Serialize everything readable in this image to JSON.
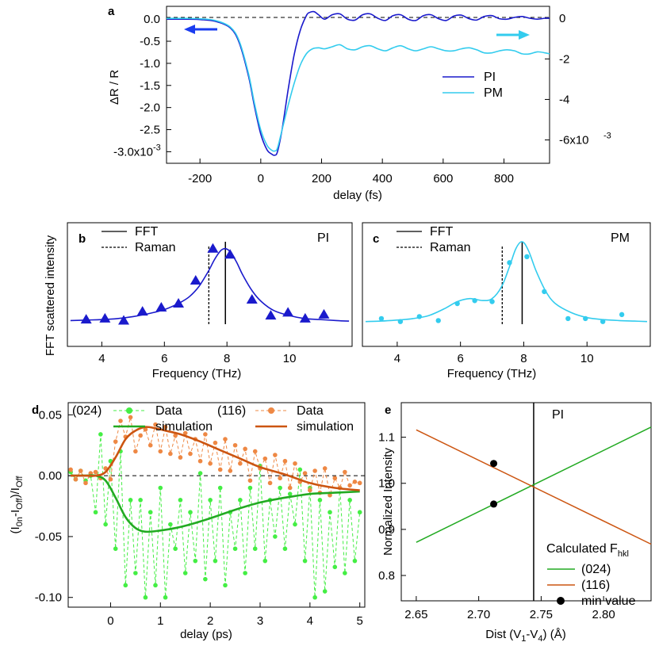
{
  "chart_data": [
    {
      "panel": "a",
      "type": "line",
      "xlabel": "delay (fs)",
      "ylabel": "ΔR / R",
      "xlim": [
        -310,
        950
      ],
      "ylim_left": [
        -3.1,
        0.2
      ],
      "ylim_right": [
        -6.8,
        0.4
      ],
      "xticks": [
        "-200",
        "0",
        "200",
        "400",
        "600",
        "800"
      ],
      "yticks_left": [
        "0.0",
        "-0.5",
        "-1.0",
        "-1.5",
        "-2.0",
        "-2.5",
        "-3.0x10"
      ],
      "yticks_left_exp": "-3",
      "yticks_right": [
        "0",
        "-2",
        "-4",
        "-6x10"
      ],
      "yticks_right_exp": "-3",
      "left_arrow_color": "#1a3cf0",
      "right_arrow_color": "#33ccee",
      "series": [
        {
          "name": "PI",
          "color": "#1a1acc",
          "axis": "left",
          "x": [
            -310,
            -250,
            -200,
            -150,
            -100,
            -70,
            -40,
            -20,
            0,
            20,
            35,
            45,
            55,
            70,
            90,
            110,
            130,
            150,
            160,
            175,
            190,
            210,
            235,
            260,
            285,
            310,
            335,
            360,
            385,
            410,
            435,
            460,
            485,
            510,
            535,
            560,
            585,
            610,
            635,
            660,
            685,
            710,
            735,
            760,
            785,
            810,
            835,
            860,
            885,
            910,
            935,
            950
          ],
          "y": [
            0.0,
            0.0,
            -0.01,
            -0.05,
            -0.2,
            -0.55,
            -1.3,
            -2.0,
            -2.6,
            -2.95,
            -3.05,
            -3.08,
            -3.0,
            -2.5,
            -1.6,
            -0.8,
            -0.25,
            0.08,
            0.15,
            0.17,
            0.1,
            0.0,
            0.1,
            0.12,
            0.0,
            -0.02,
            0.1,
            0.12,
            0.02,
            -0.03,
            0.08,
            0.1,
            0.0,
            -0.03,
            0.08,
            0.1,
            0.01,
            -0.03,
            0.07,
            0.09,
            0.01,
            -0.02,
            0.06,
            0.08,
            0.01,
            0.0,
            0.04,
            0.06,
            0.02,
            0.0,
            0.02,
            0.02
          ]
        },
        {
          "name": "PM",
          "color": "#33ccee",
          "axis": "right",
          "x": [
            -310,
            -250,
            -200,
            -150,
            -100,
            -70,
            -40,
            -20,
            0,
            20,
            35,
            45,
            55,
            70,
            90,
            110,
            130,
            150,
            170,
            190,
            210,
            235,
            260,
            285,
            310,
            335,
            360,
            385,
            410,
            435,
            460,
            485,
            510,
            535,
            560,
            585,
            610,
            635,
            660,
            685,
            710,
            735,
            760,
            785,
            810,
            835,
            860,
            885,
            910,
            935,
            950
          ],
          "y": [
            0.0,
            0.0,
            -0.02,
            -0.1,
            -0.43,
            -1.15,
            -2.75,
            -4.25,
            -5.5,
            -6.25,
            -6.5,
            -6.55,
            -6.4,
            -5.5,
            -4.3,
            -3.2,
            -2.3,
            -1.75,
            -1.5,
            -1.45,
            -1.5,
            -1.4,
            -1.3,
            -1.5,
            -1.55,
            -1.4,
            -1.35,
            -1.5,
            -1.6,
            -1.45,
            -1.35,
            -1.5,
            -1.6,
            -1.5,
            -1.4,
            -1.5,
            -1.6,
            -1.6,
            -1.5,
            -1.45,
            -1.55,
            -1.7,
            -1.7,
            -1.6,
            -1.55,
            -1.6,
            -1.75,
            -1.75,
            -1.65,
            -1.7,
            -1.75
          ]
        }
      ]
    },
    {
      "panel": "b",
      "type": "scatter",
      "annotation": "PI",
      "xlabel": "Frequency (THz)",
      "ylabel": "FFT scattered intensity",
      "xlim": [
        2.9,
        12.0
      ],
      "ylim": [
        0,
        1
      ],
      "xticks": [
        "4",
        "6",
        "8",
        "10"
      ],
      "color": "#1a1acc",
      "legend": [
        "FFT",
        "Raman"
      ],
      "fft_line_x": 7.95,
      "raman_line_x": 7.42,
      "points": {
        "x": [
          3.5,
          4.1,
          4.7,
          5.3,
          5.9,
          6.45,
          7.0,
          7.55,
          8.1,
          8.8,
          9.4,
          9.95,
          10.5,
          11.1
        ],
        "y": [
          0.07,
          0.08,
          0.06,
          0.15,
          0.19,
          0.23,
          0.46,
          0.78,
          0.72,
          0.27,
          0.11,
          0.14,
          0.08,
          0.12
        ]
      },
      "fit": {
        "x": [
          3.0,
          3.5,
          4.0,
          4.5,
          5.0,
          5.5,
          6.0,
          6.5,
          6.8,
          7.1,
          7.4,
          7.6,
          7.8,
          7.95,
          8.1,
          8.3,
          8.5,
          8.8,
          9.1,
          9.5,
          10.0,
          10.5,
          11.0,
          11.5,
          11.9
        ],
        "y": [
          0.06,
          0.065,
          0.07,
          0.08,
          0.1,
          0.13,
          0.17,
          0.24,
          0.3,
          0.4,
          0.55,
          0.67,
          0.76,
          0.78,
          0.75,
          0.65,
          0.52,
          0.36,
          0.25,
          0.16,
          0.11,
          0.08,
          0.07,
          0.06,
          0.055
        ]
      }
    },
    {
      "panel": "c",
      "type": "scatter",
      "annotation": "PM",
      "xlabel": "Frequency (THz)",
      "xlim": [
        2.9,
        12.0
      ],
      "ylim": [
        0,
        1
      ],
      "xticks": [
        "4",
        "6",
        "8",
        "10"
      ],
      "color": "#33ccee",
      "legend": [
        "FFT",
        "Raman"
      ],
      "fft_line_x": 7.95,
      "raman_line_x": 7.32,
      "points": {
        "x": [
          3.5,
          4.1,
          4.7,
          5.3,
          5.9,
          6.45,
          7.0,
          7.55,
          8.1,
          8.65,
          9.4,
          9.95,
          10.5,
          11.1
        ],
        "y": [
          0.08,
          0.05,
          0.1,
          0.06,
          0.23,
          0.26,
          0.25,
          0.64,
          0.7,
          0.35,
          0.08,
          0.08,
          0.05,
          0.12
        ]
      },
      "fit": {
        "x": [
          3.0,
          3.5,
          4.0,
          4.5,
          5.0,
          5.5,
          5.9,
          6.3,
          6.7,
          7.0,
          7.3,
          7.55,
          7.75,
          7.95,
          8.15,
          8.4,
          8.7,
          9.0,
          9.5,
          10.0,
          10.5,
          11.0,
          11.5,
          11.9
        ],
        "y": [
          0.05,
          0.055,
          0.065,
          0.08,
          0.11,
          0.18,
          0.25,
          0.28,
          0.26,
          0.28,
          0.4,
          0.6,
          0.78,
          0.85,
          0.76,
          0.55,
          0.35,
          0.23,
          0.14,
          0.09,
          0.07,
          0.06,
          0.055,
          0.05
        ]
      }
    },
    {
      "panel": "d",
      "type": "line",
      "xlabel": "delay (ps)",
      "ylabel": "(I0n-IOff)/IOff",
      "xlim": [
        -0.85,
        5.1
      ],
      "ylim": [
        -0.108,
        0.06
      ],
      "xticks": [
        "0",
        "1",
        "2",
        "3",
        "4",
        "5"
      ],
      "yticks": [
        "0.05",
        "0.00",
        "-0.05",
        "-0.10"
      ],
      "legend": [
        {
          "label": "(024)",
          "color": "#44ee44"
        },
        {
          "label": "Data",
          "color": "#44ee44"
        },
        {
          "label": "simulation",
          "color": "#22aa22"
        },
        {
          "label": "(116)",
          "color": "#ee8844"
        },
        {
          "label": "Data",
          "color": "#ee8844"
        },
        {
          "label": "simulation",
          "color": "#cc5511"
        }
      ],
      "series": [
        {
          "name": "simulation (024)",
          "color": "#22aa22",
          "x": [
            -0.8,
            -0.5,
            -0.3,
            -0.1,
            0.1,
            0.3,
            0.5,
            0.7,
            1.0,
            1.3,
            1.6,
            2.0,
            2.5,
            3.0,
            3.5,
            4.0,
            4.5,
            5.0
          ],
          "y": [
            0.0,
            0.0,
            0.0,
            -0.004,
            -0.018,
            -0.034,
            -0.043,
            -0.046,
            -0.045,
            -0.043,
            -0.04,
            -0.035,
            -0.028,
            -0.022,
            -0.018,
            -0.015,
            -0.014,
            -0.013
          ]
        },
        {
          "name": "simulation (116)",
          "color": "#cc5511",
          "x": [
            -0.8,
            -0.5,
            -0.3,
            -0.1,
            0.1,
            0.3,
            0.5,
            0.7,
            0.9,
            1.1,
            1.4,
            1.8,
            2.2,
            2.6,
            3.0,
            3.5,
            4.0,
            4.5,
            5.0
          ],
          "y": [
            0.0,
            0.0,
            0.0,
            0.003,
            0.015,
            0.03,
            0.037,
            0.04,
            0.039,
            0.037,
            0.034,
            0.028,
            0.021,
            0.014,
            0.007,
            0.001,
            -0.006,
            -0.01,
            -0.012
          ]
        },
        {
          "name": "Data (024)",
          "color": "#44ee44",
          "x": [
            -0.8,
            -0.7,
            -0.6,
            -0.5,
            -0.4,
            -0.3,
            -0.2,
            -0.1,
            0.0,
            0.1,
            0.2,
            0.3,
            0.4,
            0.5,
            0.6,
            0.7,
            0.8,
            0.9,
            1.0,
            1.1,
            1.2,
            1.3,
            1.4,
            1.5,
            1.6,
            1.7,
            1.8,
            1.9,
            2.0,
            2.1,
            2.2,
            2.3,
            2.4,
            2.5,
            2.6,
            2.7,
            2.8,
            2.9,
            3.0,
            3.1,
            3.2,
            3.3,
            3.4,
            3.5,
            3.6,
            3.7,
            3.8,
            3.9,
            4.0,
            4.1,
            4.2,
            4.3,
            4.4,
            4.5,
            4.6,
            4.7,
            4.8,
            4.9,
            5.0
          ],
          "y": [
            0.003,
            -0.003,
            0.004,
            -0.004,
            0.0,
            -0.03,
            0.034,
            -0.04,
            0.012,
            -0.06,
            0.02,
            -0.09,
            -0.02,
            -0.08,
            -0.02,
            -0.1,
            -0.03,
            -0.09,
            -0.01,
            -0.1,
            -0.04,
            -0.06,
            -0.02,
            -0.08,
            -0.03,
            -0.07,
            0.002,
            -0.085,
            -0.02,
            -0.07,
            -0.01,
            -0.09,
            -0.03,
            -0.06,
            -0.02,
            -0.08,
            -0.01,
            -0.06,
            0.008,
            -0.07,
            -0.02,
            -0.05,
            -0.01,
            -0.06,
            -0.015,
            -0.04,
            0.005,
            -0.07,
            -0.01,
            -0.1,
            -0.02,
            -0.095,
            -0.03,
            -0.075,
            -0.01,
            -0.08,
            -0.02,
            -0.07,
            -0.03
          ]
        },
        {
          "name": "Data (116)",
          "color": "#ee8844",
          "x": [
            -0.8,
            -0.7,
            -0.6,
            -0.5,
            -0.4,
            -0.3,
            -0.2,
            -0.1,
            0.0,
            0.1,
            0.2,
            0.3,
            0.4,
            0.5,
            0.6,
            0.7,
            0.8,
            0.9,
            1.0,
            1.1,
            1.2,
            1.3,
            1.4,
            1.5,
            1.6,
            1.7,
            1.8,
            1.9,
            2.0,
            2.1,
            2.2,
            2.3,
            2.4,
            2.5,
            2.6,
            2.7,
            2.8,
            2.9,
            3.0,
            3.1,
            3.2,
            3.3,
            3.4,
            3.5,
            3.6,
            3.7,
            3.8,
            3.9,
            4.0,
            4.1,
            4.2,
            4.3,
            4.4,
            4.5,
            4.6,
            4.7,
            4.8,
            4.9,
            5.0
          ],
          "y": [
            0.005,
            -0.003,
            0.004,
            -0.006,
            0.002,
            0.003,
            -0.002,
            0.006,
            -0.003,
            0.028,
            0.045,
            0.032,
            0.048,
            0.02,
            0.033,
            0.038,
            0.025,
            0.042,
            0.02,
            0.04,
            0.018,
            0.033,
            0.015,
            0.035,
            0.018,
            0.03,
            0.012,
            0.034,
            0.01,
            0.027,
            0.005,
            0.03,
            0.004,
            0.025,
            0.01,
            0.022,
            -0.004,
            0.02,
            0.006,
            0.014,
            -0.006,
            0.017,
            -0.002,
            0.012,
            -0.01,
            0.01,
            -0.005,
            0.002,
            -0.012,
            0.004,
            -0.014,
            0.006,
            -0.016,
            -0.002,
            -0.01,
            0.003,
            -0.008,
            -0.005,
            -0.006
          ]
        }
      ]
    },
    {
      "panel": "e",
      "type": "line",
      "annotation": "PI",
      "xlabel": "Dist (V1-V4) (Å)",
      "ylabel": "Normalized Intensity",
      "xlim": [
        2.638,
        2.838
      ],
      "ylim": [
        0.745,
        1.175
      ],
      "xticks": [
        "2.65",
        "2.70",
        "2.75",
        "2.80"
      ],
      "yticks": [
        "1.1",
        "1.0",
        "0.9",
        "0.8"
      ],
      "legend_title": "Calculated F",
      "legend_title_sub": "hkl",
      "vline_x": 2.744,
      "series": [
        {
          "name": "(024)",
          "color": "#22aa22",
          "x": [
            2.65,
            2.838
          ],
          "y": [
            0.872,
            1.122
          ]
        },
        {
          "name": "(116)",
          "color": "#cc5511",
          "x": [
            2.65,
            2.838
          ],
          "y": [
            1.116,
            0.868
          ]
        }
      ],
      "min_value": {
        "label": "min value",
        "color": "#000000",
        "x": [
          2.712,
          2.712
        ],
        "y": [
          1.043,
          0.955
        ]
      }
    }
  ],
  "labels": {
    "a_title": "a",
    "b_title": "b",
    "c_title": "c",
    "d_title": "d",
    "e_title": "e",
    "legend_pi": "PI",
    "legend_pm": "PM",
    "fft": "FFT",
    "raman": "Raman",
    "a_ylabel": "ΔR / R",
    "a_xlabel": "delay (fs)",
    "bc_ylabel": "FFT scattered intensity",
    "freq_xlabel": "Frequency (THz)",
    "d_xlabel": "delay (ps)",
    "d_ylabel_parts": [
      "(I",
      "0n",
      "-I",
      "Off",
      ")/I",
      "Off"
    ],
    "e_ylabel": "Normalized Intensity",
    "e_xlabel_parts": [
      "Dist (V",
      "1",
      "-V",
      "4",
      ") (Å)"
    ],
    "d_leg_024": "(024)",
    "d_leg_116": "(116)",
    "d_leg_data": "Data",
    "d_leg_sim": "simulation",
    "e_leg_024": "(024)",
    "e_leg_116": "(116)",
    "e_leg_min": "min value"
  }
}
